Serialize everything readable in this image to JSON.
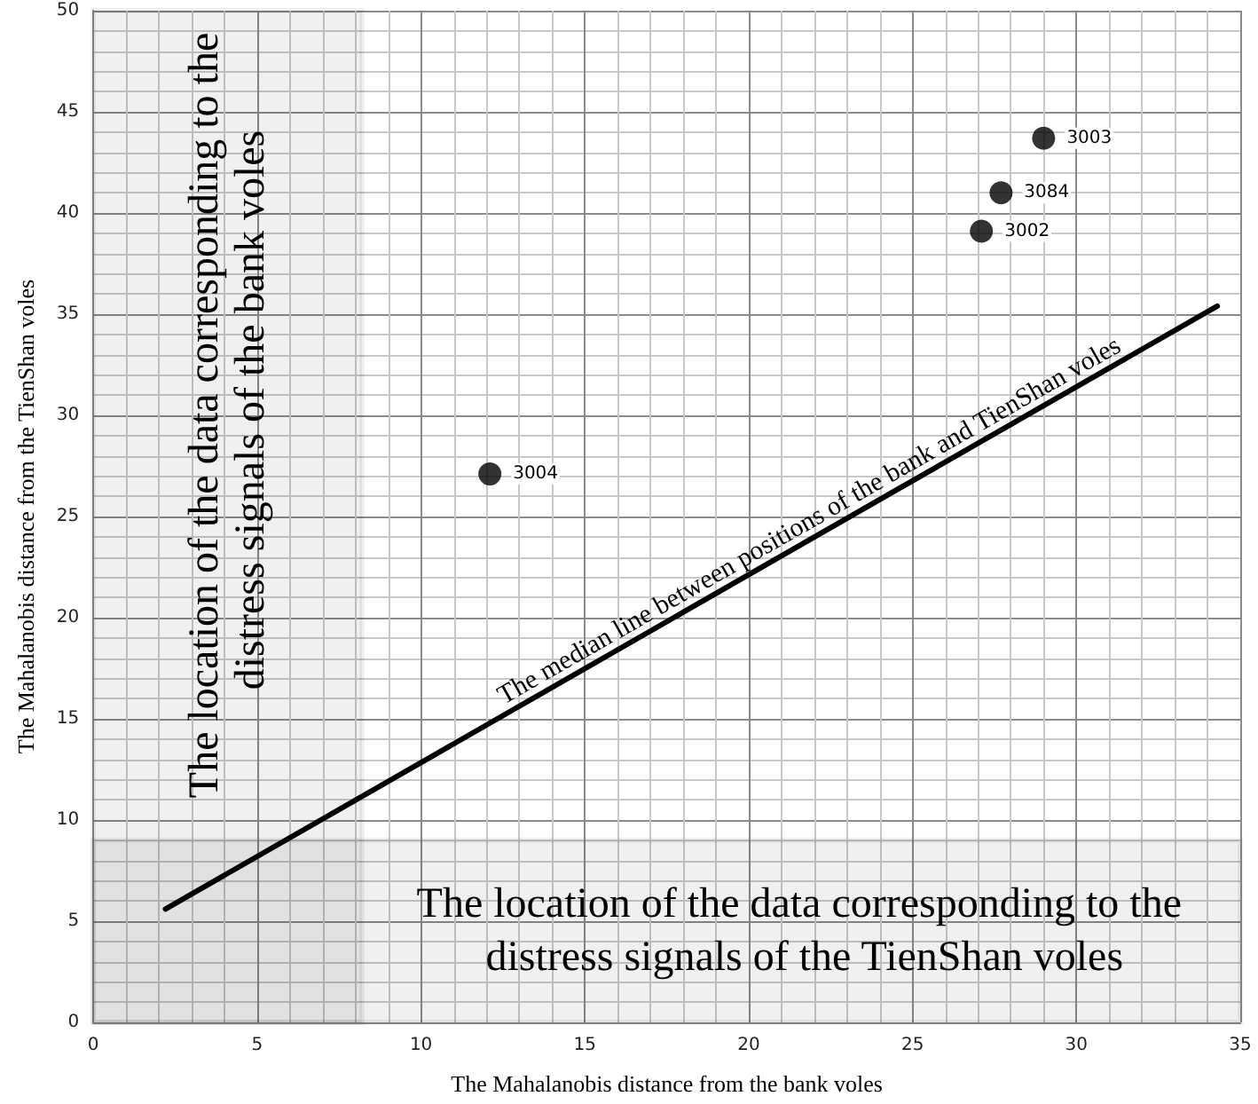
{
  "chart_data": {
    "type": "scatter",
    "xlabel": "The Mahalanobis distance from the bank voles",
    "ylabel": "The Mahalanobis distance from the TienShan voles",
    "xlim": [
      0,
      35
    ],
    "xticks": [
      0,
      5,
      10,
      15,
      20,
      25,
      30,
      35
    ],
    "ylim": [
      0,
      50
    ],
    "yticks": [
      0,
      5,
      10,
      15,
      20,
      25,
      30,
      35,
      40,
      45,
      50
    ],
    "grid": true,
    "marker": "circle",
    "series": [
      {
        "color": "#000000",
        "x": [
          12.1,
          27.1,
          27.7,
          29.0
        ],
        "values": [
          27.1,
          39.1,
          41.0,
          43.7
        ]
      },
      {
        "type": "line",
        "name": "The median line between positions of the bank and TienShan voles",
        "color": "#000000",
        "marker": "none",
        "x": [
          2.2,
          34.3
        ],
        "values": [
          5.6,
          35.4
        ]
      }
    ],
    "annotations": [
      {
        "text": "3004",
        "x": 12.1,
        "y": 27.1
      },
      {
        "text": "3002",
        "x": 27.1,
        "y": 39.1
      },
      {
        "text": "3084",
        "x": 27.7,
        "y": 41.0
      },
      {
        "text": "3003",
        "x": 29.0,
        "y": 43.7
      }
    ],
    "bands": [
      {
        "axis": "x",
        "from": 0,
        "to": 8.2,
        "label": "The location of the data corresponding to the distress signals of the bank voles",
        "color": "#000000"
      },
      {
        "axis": "y",
        "from": 0,
        "to": 9,
        "label": "The location of the data corresponding to the distress signals of the TienShan voles",
        "color": "#000000"
      }
    ]
  }
}
